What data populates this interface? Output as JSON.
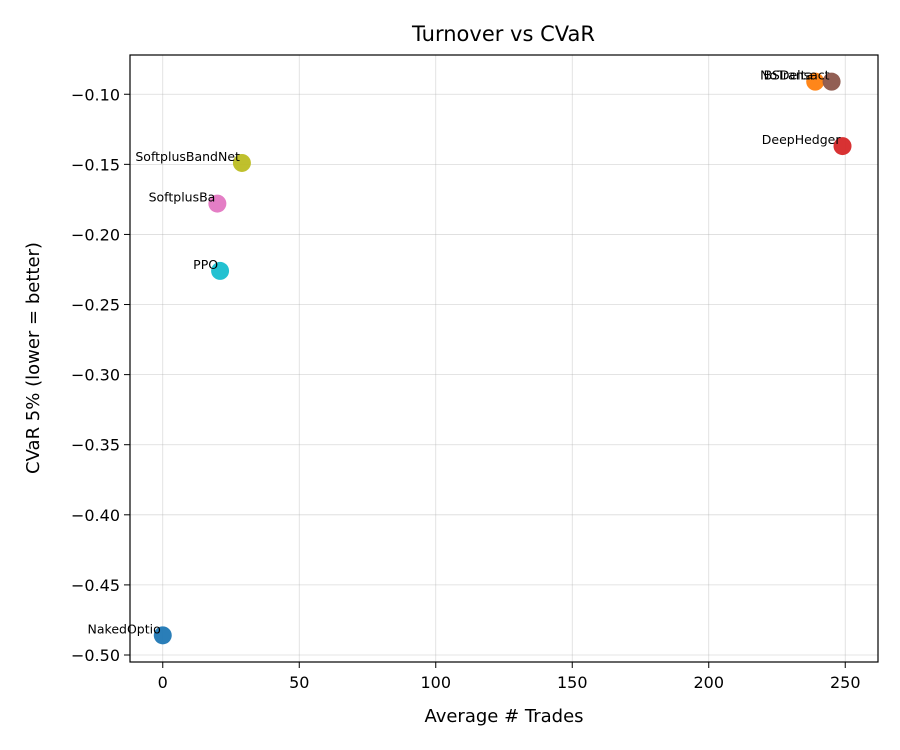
{
  "chart_data": {
    "type": "scatter",
    "title": "Turnover vs CVaR",
    "xlabel": "Average # Trades",
    "ylabel": "CVaR 5% (lower = better)",
    "xlim": [
      -12,
      262
    ],
    "ylim": [
      -0.505,
      -0.072
    ],
    "xticks": [
      0,
      50,
      100,
      150,
      200,
      250
    ],
    "yticks": [
      -0.1,
      -0.15,
      -0.2,
      -0.25,
      -0.3,
      -0.35,
      -0.4,
      -0.45,
      -0.5
    ],
    "xtick_labels": [
      "0",
      "50",
      "100",
      "150",
      "200",
      "250"
    ],
    "ytick_labels": [
      "−0.10",
      "−0.15",
      "−0.20",
      "−0.25",
      "−0.30",
      "−0.35",
      "−0.40",
      "−0.45",
      "−0.50"
    ],
    "grid": true,
    "points": [
      {
        "label": "NakedOptio",
        "x": 0,
        "y": -0.486,
        "color": "#1f77b4"
      },
      {
        "label": "BSDelta",
        "x": 239,
        "y": -0.091,
        "color": "#ff7f0e"
      },
      {
        "label": "DeepHedger",
        "x": 249,
        "y": -0.137,
        "color": "#d62728"
      },
      {
        "label": "NoTransact",
        "x": 245,
        "y": -0.091,
        "color": "#8c564b"
      },
      {
        "label": "SoftplusBa",
        "x": 20,
        "y": -0.178,
        "color": "#e377c2"
      },
      {
        "label": "SoftplusBandNet",
        "x": 29,
        "y": -0.149,
        "color": "#bcbd22"
      },
      {
        "label": "PPO",
        "x": 21,
        "y": -0.226,
        "color": "#17becf"
      }
    ]
  }
}
